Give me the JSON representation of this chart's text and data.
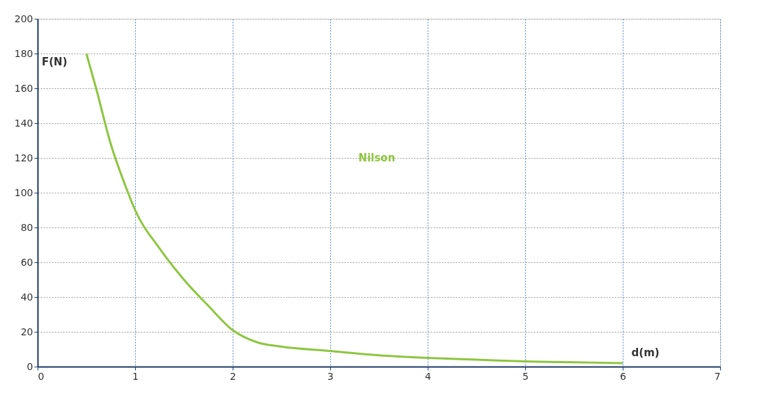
{
  "chart_data": {
    "type": "line",
    "xlabel": "d(m)",
    "ylabel": "F(N)",
    "x": [
      0.5,
      0.6,
      0.75,
      0.9,
      1,
      1.25,
      1.5,
      1.75,
      2,
      2.25,
      2.5,
      3,
      3.5,
      4,
      4.5,
      5,
      5.5,
      6
    ],
    "series": [
      {
        "name": "Nilson",
        "color": "#8cc63f",
        "values": [
          180,
          160,
          128,
          104,
          90,
          68,
          50,
          35,
          21,
          14,
          11.5,
          9,
          6.5,
          5,
          4,
          3,
          2.5,
          2
        ]
      }
    ],
    "xlim": [
      0,
      7
    ],
    "xticks": [
      0,
      1,
      2,
      3,
      4,
      5,
      6,
      7
    ],
    "ylim": [
      0,
      200
    ],
    "yticks": [
      0,
      20,
      40,
      60,
      80,
      100,
      120,
      140,
      160,
      180,
      200
    ],
    "grid": true,
    "legend": false,
    "marker": "none",
    "line_style": "solid"
  }
}
